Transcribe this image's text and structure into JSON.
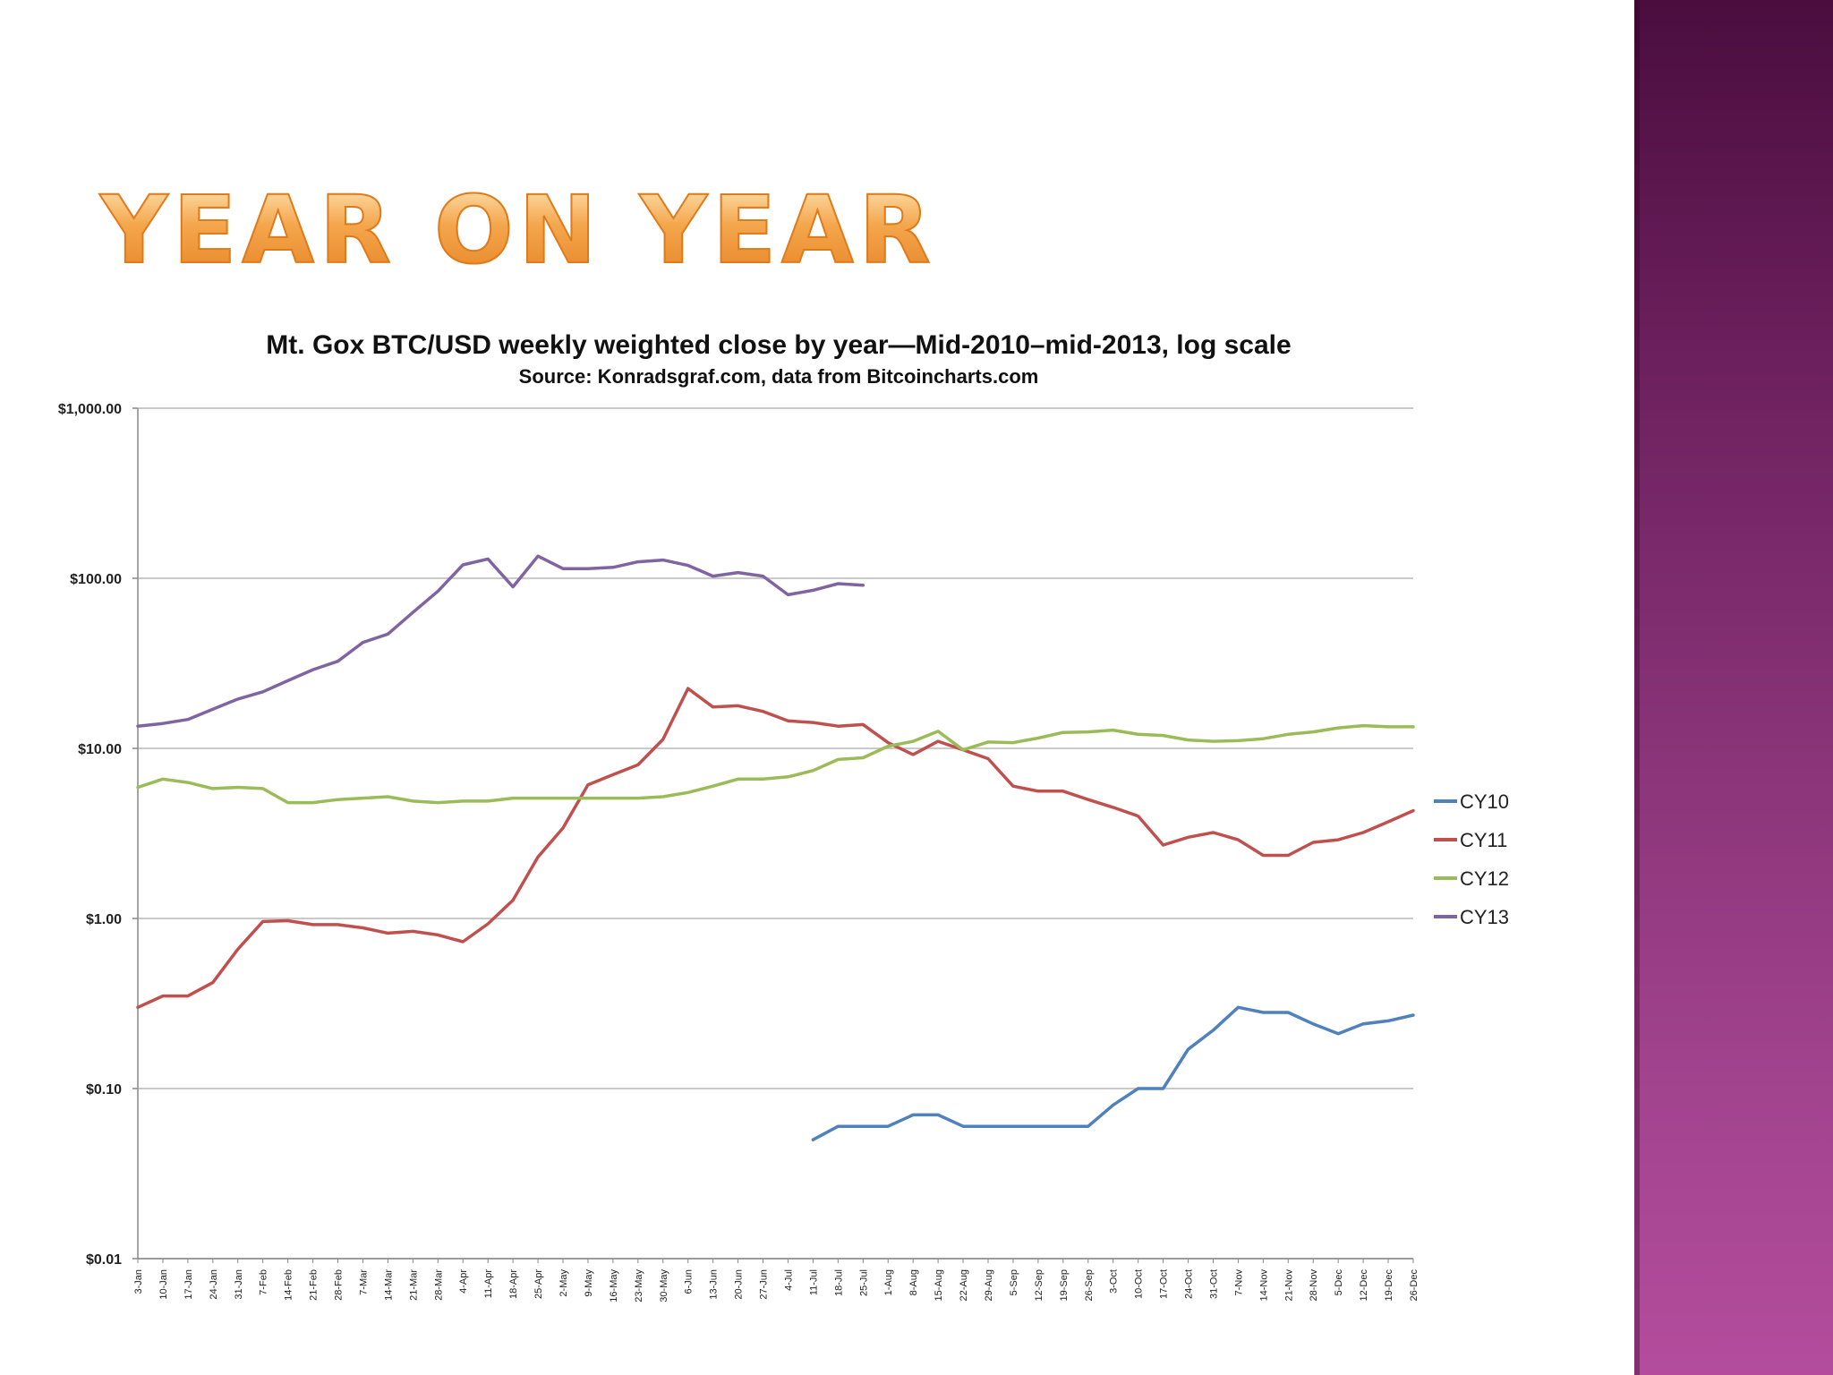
{
  "slide": {
    "title": "YEAR ON YEAR"
  },
  "chart_data": {
    "type": "line",
    "title": "Mt. Gox BTC/USD weekly weighted close by year—Mid-2010–mid-2013, log scale",
    "subtitle": "Source: Konradsgraf.com, data from Bitcoincharts.com",
    "xlabel": "",
    "ylabel": "",
    "yscale": "log",
    "ylim": [
      0.01,
      1000
    ],
    "grid": true,
    "legend_position": "right",
    "y_ticks": [
      {
        "value": 1000,
        "label": "$1,000.00"
      },
      {
        "value": 100,
        "label": "$100.00"
      },
      {
        "value": 10,
        "label": "$10.00"
      },
      {
        "value": 1,
        "label": "$1.00"
      },
      {
        "value": 0.1,
        "label": "$0.10"
      },
      {
        "value": 0.01,
        "label": "$0.01"
      }
    ],
    "categories": [
      "3-Jan",
      "10-Jan",
      "17-Jan",
      "24-Jan",
      "31-Jan",
      "7-Feb",
      "14-Feb",
      "21-Feb",
      "28-Feb",
      "7-Mar",
      "14-Mar",
      "21-Mar",
      "28-Mar",
      "4-Apr",
      "11-Apr",
      "18-Apr",
      "25-Apr",
      "2-May",
      "9-May",
      "16-May",
      "23-May",
      "30-May",
      "6-Jun",
      "13-Jun",
      "20-Jun",
      "27-Jun",
      "4-Jul",
      "11-Jul",
      "18-Jul",
      "25-Jul",
      "1-Aug",
      "8-Aug",
      "15-Aug",
      "22-Aug",
      "29-Aug",
      "5-Sep",
      "12-Sep",
      "19-Sep",
      "26-Sep",
      "3-Oct",
      "10-Oct",
      "17-Oct",
      "24-Oct",
      "31-Oct",
      "7-Nov",
      "14-Nov",
      "21-Nov",
      "28-Nov",
      "5-Dec",
      "12-Dec",
      "19-Dec",
      "26-Dec"
    ],
    "series": [
      {
        "name": "CY10",
        "color": "#4f81bd",
        "values": [
          null,
          null,
          null,
          null,
          null,
          null,
          null,
          null,
          null,
          null,
          null,
          null,
          null,
          null,
          null,
          null,
          null,
          null,
          null,
          null,
          null,
          null,
          null,
          null,
          null,
          null,
          null,
          0.05,
          0.06,
          0.06,
          0.06,
          0.07,
          0.07,
          0.06,
          0.06,
          0.06,
          0.06,
          0.06,
          0.06,
          0.08,
          0.1,
          0.1,
          0.17,
          0.22,
          0.3,
          0.28,
          0.28,
          0.24,
          0.21,
          0.24,
          0.25,
          0.27
        ]
      },
      {
        "name": "CY11",
        "color": "#c0504d",
        "values": [
          0.3,
          0.35,
          0.35,
          0.42,
          0.66,
          0.96,
          0.97,
          0.92,
          0.92,
          0.88,
          0.82,
          0.84,
          0.8,
          0.73,
          0.93,
          1.28,
          2.3,
          3.4,
          6.1,
          7.0,
          8.0,
          11.3,
          22.5,
          17.5,
          17.8,
          16.5,
          14.5,
          14.2,
          13.5,
          13.8,
          10.8,
          9.2,
          11.0,
          9.8,
          8.7,
          6.0,
          5.6,
          5.6,
          5.0,
          4.5,
          4.0,
          2.7,
          3.0,
          3.2,
          2.9,
          2.35,
          2.35,
          2.8,
          2.9,
          3.2,
          3.7,
          4.3
        ]
      },
      {
        "name": "CY12",
        "color": "#9bbb59",
        "values": [
          5.9,
          6.6,
          6.3,
          5.8,
          5.9,
          5.8,
          4.8,
          4.8,
          5.0,
          5.1,
          5.2,
          4.9,
          4.8,
          4.9,
          4.9,
          5.1,
          5.1,
          5.1,
          5.1,
          5.1,
          5.1,
          5.2,
          5.5,
          6.0,
          6.6,
          6.6,
          6.8,
          7.4,
          8.6,
          8.8,
          10.3,
          11.0,
          12.6,
          9.8,
          10.9,
          10.8,
          11.5,
          12.4,
          12.5,
          12.8,
          12.1,
          11.9,
          11.2,
          11.0,
          11.1,
          11.4,
          12.1,
          12.5,
          13.2,
          13.6,
          13.4,
          13.4
        ]
      },
      {
        "name": "CY13",
        "color": "#8064a2",
        "values": [
          13.5,
          14.0,
          14.8,
          17.0,
          19.5,
          21.5,
          25.0,
          29.0,
          32.5,
          42.0,
          47.0,
          63.0,
          84.0,
          120.0,
          130.0,
          89.0,
          135.0,
          114.0,
          114.0,
          116.0,
          125.0,
          128.0,
          119.0,
          103.0,
          108.0,
          103.0,
          80.0,
          85.0,
          93.0,
          91.0,
          null,
          null,
          null,
          null,
          null,
          null,
          null,
          null,
          null,
          null,
          null,
          null,
          null,
          null,
          null,
          null,
          null,
          null,
          null,
          null,
          null,
          null
        ]
      }
    ]
  }
}
